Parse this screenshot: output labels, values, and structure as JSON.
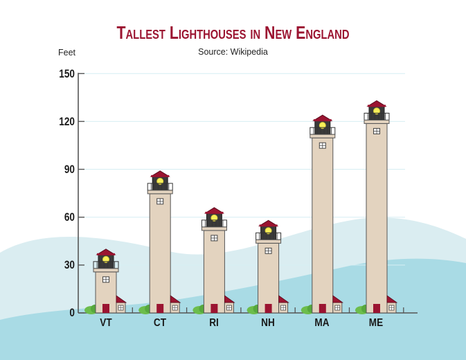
{
  "header": {
    "title": "Tallest Lighthouses in New England",
    "source": "Source: Wikipedia",
    "ylabel": "Feet"
  },
  "axis": {
    "ticks": [
      "0",
      "30",
      "60",
      "90",
      "120",
      "150"
    ],
    "categories": [
      "VT",
      "CT",
      "RI",
      "NH",
      "MA",
      "ME"
    ]
  },
  "colors": {
    "title": "#9b1431",
    "tower": "#e3d3bf",
    "roof": "#9b1431",
    "lantern": "#3a3a3a",
    "light": "#f7ef5a",
    "water_light": "#daedf1",
    "water_dark": "#a9dbe5",
    "bush": "#6cbd4c"
  },
  "chart_data": {
    "type": "bar",
    "title": "Tallest Lighthouses in New England",
    "subtitle": "Source: Wikipedia",
    "xlabel": "",
    "ylabel": "Feet",
    "categories": [
      "VT",
      "CT",
      "RI",
      "NH",
      "MA",
      "ME"
    ],
    "values": [
      40,
      89,
      66,
      58,
      124,
      133
    ],
    "ylim": [
      0,
      150
    ],
    "yticks": [
      0,
      30,
      60,
      90,
      120,
      150
    ],
    "grid": true,
    "legend": null
  }
}
